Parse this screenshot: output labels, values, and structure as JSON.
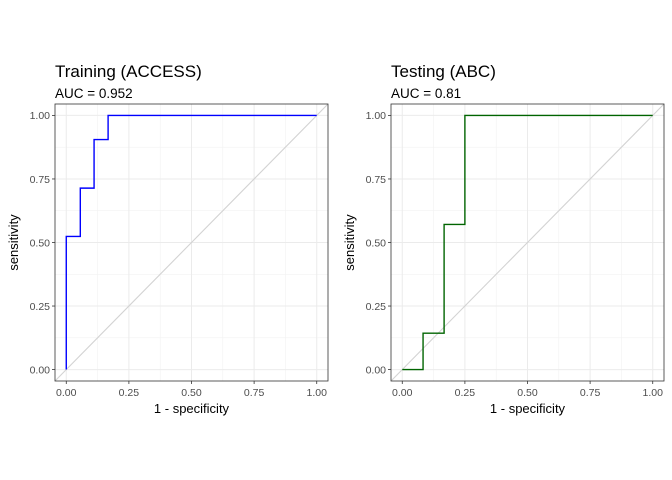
{
  "chart_data": [
    {
      "type": "line",
      "title": "Training (ACCESS)",
      "subtitle": "AUC = 0.952",
      "xlabel": "1 - specificity",
      "ylabel": "sensitivity",
      "xlim": [
        0,
        1
      ],
      "ylim": [
        0,
        1
      ],
      "xticks": [
        "0.00",
        "0.25",
        "0.50",
        "0.75",
        "1.00"
      ],
      "yticks": [
        "0.00",
        "0.25",
        "0.50",
        "0.75",
        "1.00"
      ],
      "grid": true,
      "series": [
        {
          "color": "#0000ff",
          "x": [
            0,
            0,
            0.056,
            0.056,
            0.111,
            0.111,
            0.167,
            0.167,
            1.0
          ],
          "y": [
            0,
            0.524,
            0.524,
            0.714,
            0.714,
            0.905,
            0.905,
            1.0,
            1.0
          ]
        }
      ],
      "reference_line": {
        "color": "#d3d3d3",
        "x": [
          0,
          1
        ],
        "y": [
          0,
          1
        ]
      }
    },
    {
      "type": "line",
      "title": "Testing (ABC)",
      "subtitle": "AUC = 0.81",
      "xlabel": "1 - specificity",
      "ylabel": "sensitivity",
      "xlim": [
        0,
        1
      ],
      "ylim": [
        0,
        1
      ],
      "xticks": [
        "0.00",
        "0.25",
        "0.50",
        "0.75",
        "1.00"
      ],
      "yticks": [
        "0.00",
        "0.25",
        "0.50",
        "0.75",
        "1.00"
      ],
      "grid": true,
      "series": [
        {
          "color": "#006400",
          "x": [
            0,
            0.083,
            0.083,
            0.167,
            0.167,
            0.25,
            0.25,
            1.0
          ],
          "y": [
            0,
            0,
            0.143,
            0.143,
            0.571,
            0.571,
            1.0,
            1.0
          ]
        }
      ],
      "reference_line": {
        "color": "#d3d3d3",
        "x": [
          0,
          1
        ],
        "y": [
          0,
          1
        ]
      }
    }
  ]
}
